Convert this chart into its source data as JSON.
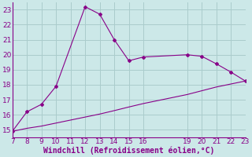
{
  "xlabel": "Windchill (Refroidissement éolien,°C)",
  "bg_color": "#cce8e8",
  "grid_color": "#aacccc",
  "line_color": "#880088",
  "xlim": [
    7,
    23
  ],
  "ylim": [
    14.5,
    23.5
  ],
  "xticks": [
    7,
    8,
    9,
    10,
    11,
    12,
    13,
    14,
    15,
    16,
    19,
    20,
    21,
    22,
    23
  ],
  "yticks": [
    15,
    16,
    17,
    18,
    19,
    20,
    21,
    22,
    23
  ],
  "upper_x": [
    7,
    8,
    9,
    10,
    12,
    13,
    14,
    15,
    16,
    19,
    20,
    21,
    22,
    23
  ],
  "upper_y": [
    14.9,
    16.2,
    16.7,
    17.9,
    23.2,
    22.7,
    21.0,
    19.6,
    19.85,
    20.0,
    19.9,
    19.4,
    18.85,
    18.25
  ],
  "lower_x": [
    7,
    8,
    9,
    10,
    11,
    12,
    13,
    14,
    15,
    16,
    19,
    20,
    21,
    22,
    23
  ],
  "lower_y": [
    14.9,
    15.1,
    15.25,
    15.45,
    15.65,
    15.85,
    16.05,
    16.28,
    16.52,
    16.75,
    17.35,
    17.6,
    17.85,
    18.05,
    18.25
  ],
  "font_color": "#880088",
  "xlabel_fontsize": 7,
  "tick_fontsize": 6.5,
  "linewidth": 0.8,
  "markersize": 2.0
}
